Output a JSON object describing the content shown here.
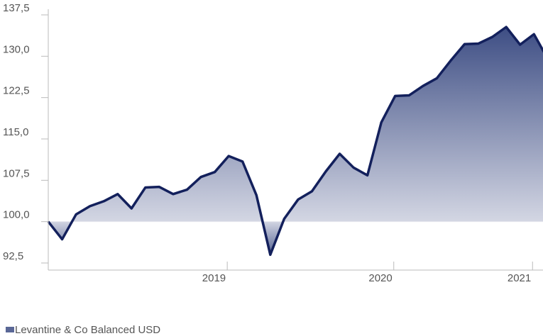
{
  "chart_data": {
    "type": "area",
    "categories": [
      null,
      null,
      null,
      null,
      null,
      null,
      null,
      null,
      null,
      null,
      null,
      null,
      null,
      "2019",
      null,
      null,
      null,
      null,
      null,
      null,
      null,
      null,
      null,
      null,
      null,
      "2020",
      null,
      null,
      null,
      null,
      null,
      null,
      null,
      null,
      null,
      "2021",
      null
    ],
    "series": [
      {
        "name": "Levantine & Co Balanced USD",
        "color": "#13205c",
        "values": [
          100,
          96.8,
          101.3,
          102.8,
          103.7,
          105,
          102.4,
          106.2,
          106.3,
          105,
          105.8,
          108.1,
          109,
          111.9,
          110.9,
          104.8,
          94,
          100.5,
          104,
          105.5,
          109.1,
          112.3,
          109.8,
          108.4,
          118,
          122.8,
          122.9,
          124.6,
          126,
          129.2,
          132.2,
          132.3,
          133.5,
          135.3,
          132.1,
          134,
          129.5
        ]
      }
    ],
    "baseline": 100,
    "ylim": [
      92.5,
      137.5
    ],
    "yticks": [
      {
        "value": 92.5,
        "label": "92,5"
      },
      {
        "value": 100,
        "label": "100,0"
      },
      {
        "value": 107.5,
        "label": "107,5"
      },
      {
        "value": 115,
        "label": "115,0"
      },
      {
        "value": 122.5,
        "label": "122,5"
      },
      {
        "value": 130,
        "label": "130,0"
      },
      {
        "value": 137.5,
        "label": "137,5"
      }
    ],
    "legend": "bottom-left"
  }
}
